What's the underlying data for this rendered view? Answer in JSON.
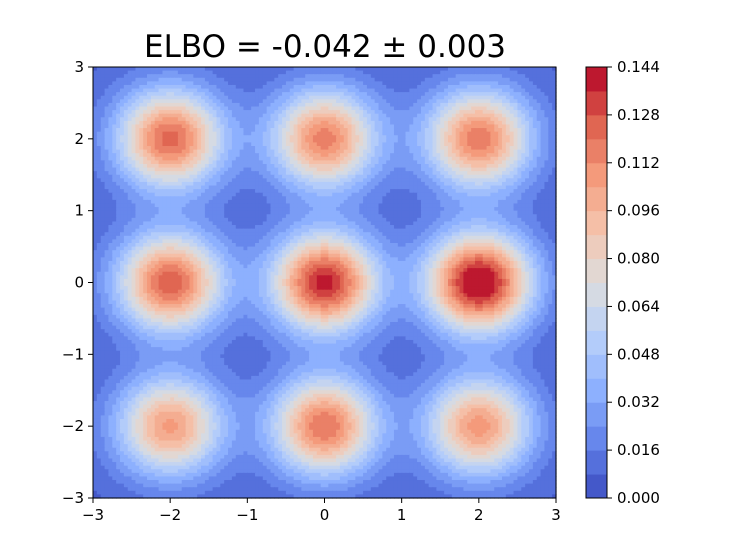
{
  "chart_data": {
    "type": "heatmap",
    "title": "ELBO = -0.042 ± 0.003",
    "xlabel": "",
    "ylabel": "",
    "xlim": [
      -3,
      3
    ],
    "ylim": [
      -3,
      3
    ],
    "x_ticks": [
      "−3",
      "−2",
      "−1",
      "0",
      "1",
      "2",
      "3"
    ],
    "y_ticks": [
      "−3",
      "−2",
      "−1",
      "0",
      "1",
      "2",
      "3"
    ],
    "colormap": "coolwarm",
    "contour_levels": 18,
    "colorbar": {
      "min": 0.0,
      "max": 0.144,
      "ticks": [
        "0.000",
        "0.016",
        "0.032",
        "0.048",
        "0.064",
        "0.080",
        "0.096",
        "0.112",
        "0.128",
        "0.144"
      ]
    },
    "peaks": [
      {
        "x": -2,
        "y": 2,
        "value": 0.118
      },
      {
        "x": 0,
        "y": 2,
        "value": 0.11
      },
      {
        "x": 2,
        "y": 2,
        "value": 0.112
      },
      {
        "x": -2,
        "y": 0,
        "value": 0.12
      },
      {
        "x": 0,
        "y": 0,
        "value": 0.134
      },
      {
        "x": 2,
        "y": 0,
        "value": 0.144
      },
      {
        "x": -2,
        "y": -2,
        "value": 0.1
      },
      {
        "x": 0,
        "y": -2,
        "value": 0.114
      },
      {
        "x": 2,
        "y": -2,
        "value": 0.102
      }
    ],
    "component_sigma": 0.48,
    "background_value": 0.006,
    "grid": false
  }
}
